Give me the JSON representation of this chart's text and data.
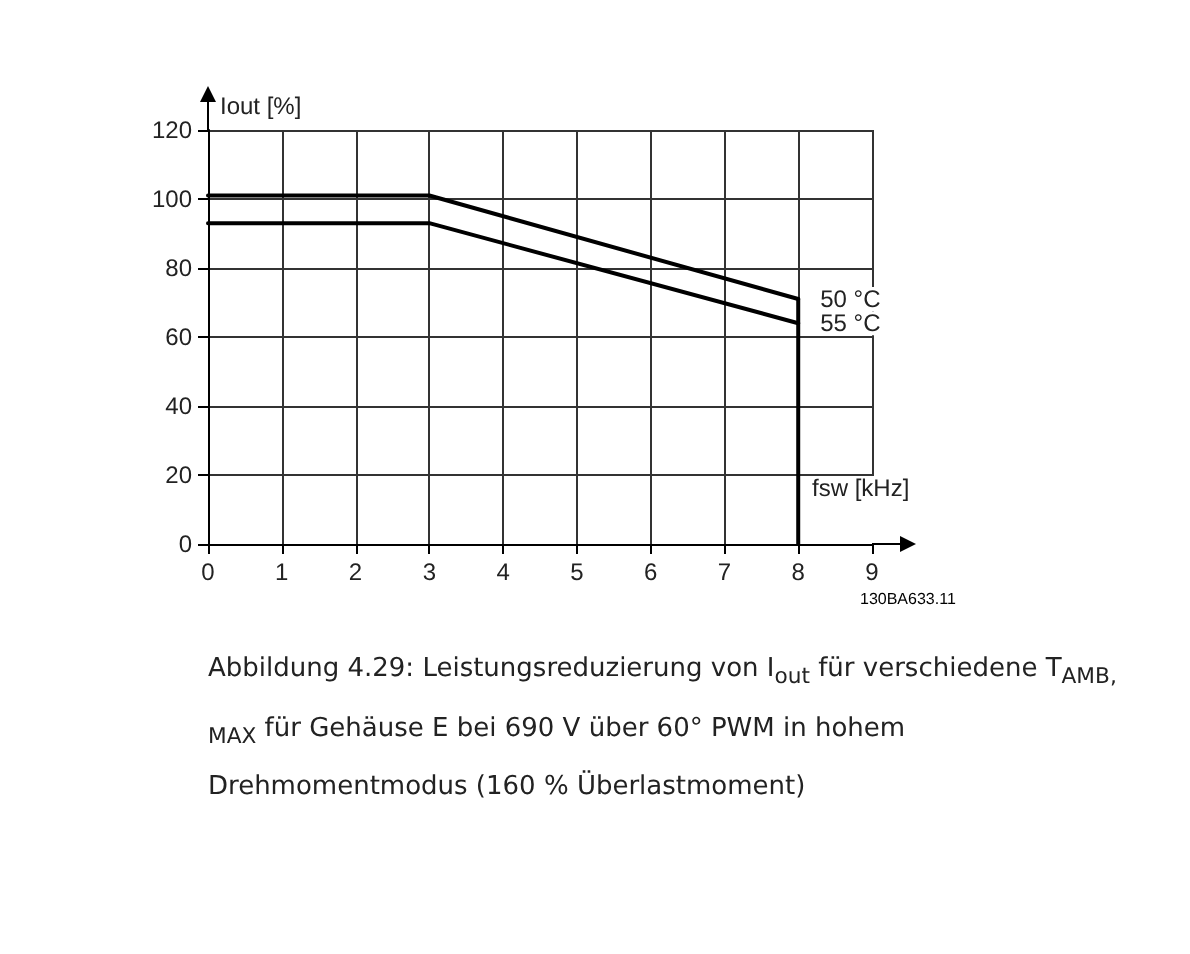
{
  "chart_data": {
    "type": "line",
    "xlabel": "fsw [kHz]",
    "ylabel": "Iout [%]",
    "x": [
      0,
      3,
      8
    ],
    "series": [
      {
        "name": "50 °C",
        "color": "#000000",
        "values": [
          101,
          101,
          71
        ]
      },
      {
        "name": "55 °C",
        "color": "#000000",
        "values": [
          93,
          93,
          64
        ]
      },
      {
        "color": "#000000",
        "x": [
          8,
          8
        ],
        "values": [
          71,
          0
        ]
      }
    ],
    "xlim": [
      0,
      9
    ],
    "xticks": [
      0,
      1,
      2,
      3,
      4,
      5,
      6,
      7,
      8,
      9
    ],
    "ylim": [
      0,
      120
    ],
    "yticks": [
      0,
      20,
      40,
      60,
      80,
      100,
      120
    ],
    "grid": true,
    "legend": false,
    "marker": "none",
    "line_style": "solid",
    "annotations": [
      "130BA633.11",
      "Abbildung 4.29: Leistungsreduzierung von I$_{out}$ für verschiedene T$_{AMB, MAX}$ für Gehäuse E bei 690 V über 60° PWM in hohem Drehmomentmodus (160 % Überlastmoment)"
    ]
  }
}
